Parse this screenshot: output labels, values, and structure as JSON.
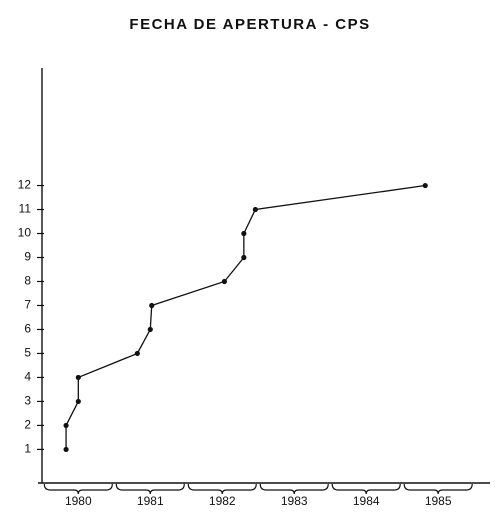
{
  "chart_data": {
    "type": "line",
    "title": "FECHA DE APERTURA - CPS",
    "x": [
      1979.83,
      1979.83,
      1980.0,
      1980.0,
      1980.82,
      1981.0,
      1981.02,
      1982.03,
      1982.3,
      1982.3,
      1982.46,
      1984.82
    ],
    "values": [
      1,
      2,
      3,
      4,
      5,
      6,
      7,
      8,
      9,
      10,
      11,
      12
    ],
    "color": "#111111",
    "xlim": [
      1979.44,
      1985.72
    ],
    "xticks": [
      1980,
      1981,
      1982,
      1983,
      1984,
      1985
    ],
    "ylim": [
      -0.4,
      16.9
    ],
    "yticks": [
      1,
      2,
      3,
      4,
      5,
      6,
      7,
      8,
      9,
      10,
      11,
      12
    ],
    "grid": false
  }
}
